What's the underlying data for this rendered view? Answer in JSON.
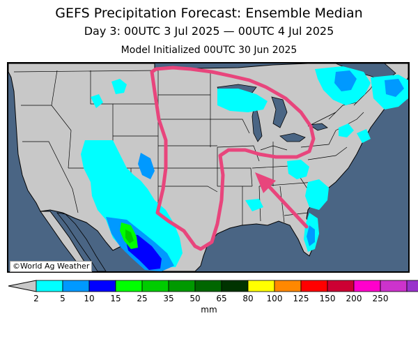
{
  "header": {
    "title": "GEFS Precipitation Forecast: Ensemble Median",
    "period": "Day 3: 00UTC 3 Jul 2025 — 00UTC 4 Jul 2025",
    "initialized": "Model Initialized 00UTC 30 Jun 2025"
  },
  "map": {
    "credit": "©World Ag Weather",
    "colors": {
      "ocean": "#4a6584",
      "land": "#c8c8c8",
      "borders": "#000000",
      "annotation": "#e8457c"
    }
  },
  "legend": {
    "unit": "mm",
    "under_color": "#c8c8c8",
    "colors": [
      "#00ffff",
      "#0099ff",
      "#0000ff",
      "#00ff00",
      "#00cc00",
      "#009900",
      "#006600",
      "#003300",
      "#ffff00",
      "#ff8800",
      "#ff0000",
      "#cc0033",
      "#ff00cc",
      "#cc33cc",
      "#9933cc"
    ],
    "labels": [
      "2",
      "5",
      "10",
      "15",
      "25",
      "35",
      "50",
      "65",
      "80",
      "100",
      "125",
      "150",
      "200",
      "250"
    ]
  }
}
